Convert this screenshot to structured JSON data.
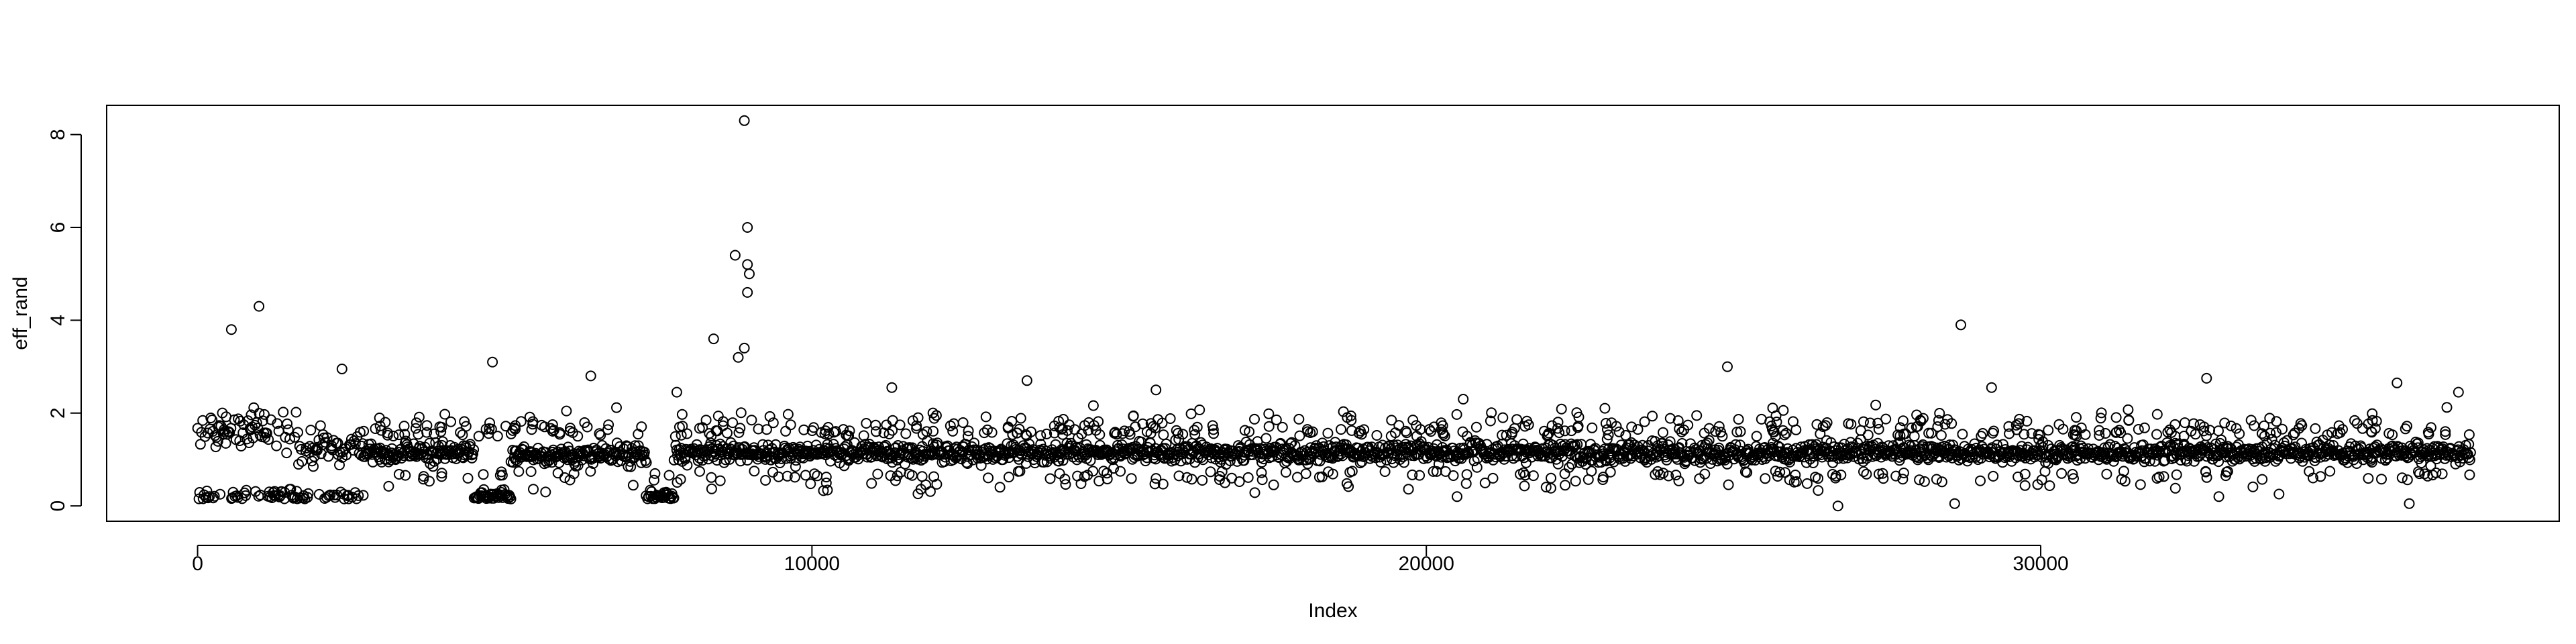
{
  "chart_data": {
    "type": "scatter",
    "title": "",
    "xlabel": "Index",
    "ylabel": "eff_rand",
    "xlim": [
      -1480,
      38440
    ],
    "ylim": [
      -0.33,
      8.63
    ],
    "x_ticks": [
      0,
      10000,
      20000,
      30000
    ],
    "x_tick_labels": [
      "0",
      "10000",
      "20000",
      "30000"
    ],
    "y_ticks": [
      0,
      2,
      4,
      6,
      8
    ],
    "y_tick_labels": [
      "0",
      "2",
      "4",
      "6",
      "8"
    ],
    "grid": false,
    "legend": "none",
    "marker": "open-circle",
    "n_points": 37000,
    "point_color": "#000000",
    "notable_points": [
      {
        "x": 8900,
        "y": 8.3
      },
      {
        "x": 8950,
        "y": 6.0
      },
      {
        "x": 8750,
        "y": 5.4
      },
      {
        "x": 8950,
        "y": 5.2
      },
      {
        "x": 8980,
        "y": 5.0
      },
      {
        "x": 8950,
        "y": 4.6
      },
      {
        "x": 1000,
        "y": 4.3
      },
      {
        "x": 28700,
        "y": 3.9
      },
      {
        "x": 550,
        "y": 3.8
      },
      {
        "x": 8400,
        "y": 3.6
      },
      {
        "x": 8900,
        "y": 3.4
      },
      {
        "x": 8800,
        "y": 3.2
      },
      {
        "x": 4800,
        "y": 3.1
      },
      {
        "x": 24900,
        "y": 3.0
      },
      {
        "x": 2350,
        "y": 2.95
      },
      {
        "x": 32700,
        "y": 2.75
      },
      {
        "x": 13500,
        "y": 2.7
      },
      {
        "x": 6400,
        "y": 2.8
      },
      {
        "x": 35800,
        "y": 2.65
      },
      {
        "x": 11300,
        "y": 2.55
      },
      {
        "x": 15600,
        "y": 2.5
      },
      {
        "x": 29200,
        "y": 2.55
      },
      {
        "x": 7800,
        "y": 2.45
      },
      {
        "x": 36800,
        "y": 2.45
      },
      {
        "x": 20600,
        "y": 2.3
      },
      {
        "x": 26700,
        "y": 0.0
      },
      {
        "x": 32900,
        "y": 0.2
      },
      {
        "x": 20500,
        "y": 0.2
      },
      {
        "x": 28600,
        "y": 0.05
      },
      {
        "x": 36000,
        "y": 0.05
      }
    ],
    "segments": [
      {
        "x_from": 0,
        "x_to": 1600,
        "pattern": "bimodal",
        "upper_level": 1.6,
        "lower_level": 0.15
      },
      {
        "x_from": 1600,
        "x_to": 2700,
        "pattern": "bimodal",
        "upper_level": 1.25,
        "lower_level": 0.15
      },
      {
        "x_from": 2700,
        "x_to": 4500,
        "pattern": "band",
        "level": 1.15
      },
      {
        "x_from": 4500,
        "x_to": 5100,
        "pattern": "near-zero",
        "level": 0.15
      },
      {
        "x_from": 5100,
        "x_to": 7300,
        "pattern": "band",
        "level": 1.1
      },
      {
        "x_from": 7300,
        "x_to": 7750,
        "pattern": "near-zero",
        "level": 0.15
      },
      {
        "x_from": 7750,
        "x_to": 37000,
        "pattern": "band",
        "level": 1.15
      }
    ]
  }
}
